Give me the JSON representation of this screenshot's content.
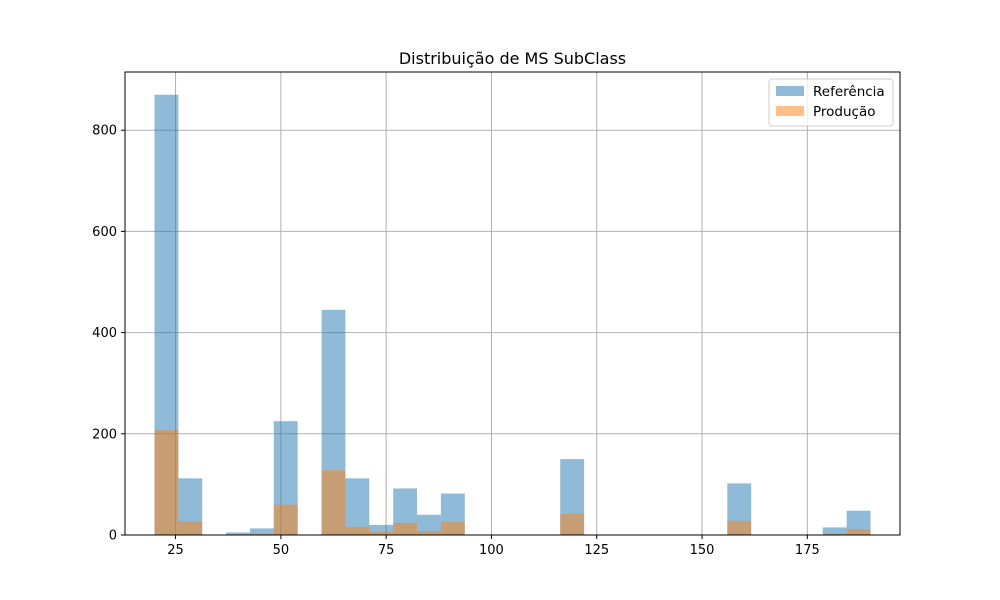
{
  "chart_data": {
    "type": "bar",
    "title": "Distribuição de MS SubClass",
    "xlabel": "",
    "ylabel": "",
    "xlim": [
      13,
      197
    ],
    "ylim": [
      0,
      915
    ],
    "xticks": [
      25,
      50,
      75,
      100,
      125,
      150,
      175
    ],
    "yticks": [
      0,
      200,
      400,
      600,
      800
    ],
    "grid": true,
    "legend_position": "top-right",
    "bin_edges": [
      20,
      25.67,
      31.33,
      37,
      42.67,
      48.33,
      54,
      59.67,
      65.33,
      71,
      76.67,
      82.33,
      88,
      93.67,
      99.33,
      105,
      110.67,
      116.33,
      122,
      127.67,
      133.33,
      139,
      144.67,
      150.33,
      156,
      161.67,
      167.33,
      173,
      178.67,
      184.33,
      190
    ],
    "series": [
      {
        "name": "Referência",
        "color": "#1f77b4",
        "opacity": 0.5,
        "values": [
          870,
          112,
          0,
          5,
          13,
          225,
          0,
          445,
          112,
          20,
          92,
          40,
          82,
          0,
          0,
          0,
          0,
          150,
          0,
          0,
          0,
          0,
          1,
          0,
          102,
          0,
          0,
          0,
          15,
          48
        ]
      },
      {
        "name": "Produção",
        "color": "#ff7f0e",
        "opacity": 0.5,
        "values": [
          207,
          27,
          0,
          1,
          3,
          60,
          0,
          128,
          16,
          6,
          24,
          8,
          26,
          0,
          0,
          0,
          0,
          42,
          0,
          0,
          0,
          0,
          0,
          0,
          28,
          0,
          0,
          0,
          3,
          12
        ]
      }
    ]
  }
}
